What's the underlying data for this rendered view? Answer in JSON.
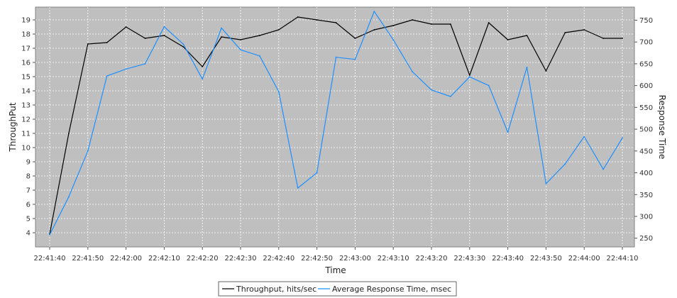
{
  "chart_data": {
    "type": "line",
    "xlabel": "Time",
    "ylabel_left": "ThroughPut",
    "ylabel_right": "Response Time",
    "x_ticks": [
      "22:41:40",
      "22:41:50",
      "22:42:00",
      "22:42:10",
      "22:42:20",
      "22:42:30",
      "22:42:40",
      "22:42:50",
      "22:43:00",
      "22:43:10",
      "22:43:20",
      "22:43:30",
      "22:43:40",
      "22:43:50",
      "22:44:00",
      "22:44:10"
    ],
    "y_left_ticks": [
      4,
      5,
      6,
      7,
      8,
      9,
      10,
      11,
      12,
      13,
      14,
      15,
      16,
      17,
      18,
      19
    ],
    "y_right_ticks": [
      250,
      300,
      350,
      400,
      450,
      500,
      550,
      600,
      650,
      700,
      750
    ],
    "ylim_left": [
      3.0,
      19.9
    ],
    "ylim_right": [
      230,
      780
    ],
    "grid": true,
    "legend_position": "bottom",
    "background": "#bfbfbf",
    "series": [
      {
        "name": "Throughput, hits/sec",
        "axis": "left",
        "color": "#000000",
        "x": [
          "22:41:40",
          "22:41:45",
          "22:41:50",
          "22:41:55",
          "22:42:00",
          "22:42:05",
          "22:42:10",
          "22:42:15",
          "22:42:20",
          "22:42:25",
          "22:42:30",
          "22:42:35",
          "22:42:40",
          "22:42:45",
          "22:42:50",
          "22:42:55",
          "22:43:00",
          "22:43:05",
          "22:43:10",
          "22:43:15",
          "22:43:20",
          "22:43:25",
          "22:43:30",
          "22:43:35",
          "22:43:40",
          "22:43:45",
          "22:43:50",
          "22:43:55",
          "22:44:00",
          "22:44:05",
          "22:44:10"
        ],
        "values": [
          3.9,
          11.0,
          17.3,
          17.4,
          18.5,
          17.7,
          17.9,
          17.1,
          15.7,
          17.8,
          17.6,
          17.9,
          18.3,
          19.2,
          19.0,
          18.8,
          17.7,
          18.3,
          18.6,
          19.0,
          18.7,
          18.7,
          15.1,
          18.8,
          17.6,
          17.9,
          15.4,
          18.1,
          18.3,
          17.7,
          17.7
        ]
      },
      {
        "name": "Average Response Time, msec",
        "axis": "right",
        "color": "#1e90ff",
        "x": [
          "22:41:40",
          "22:41:45",
          "22:41:50",
          "22:41:55",
          "22:42:00",
          "22:42:05",
          "22:42:10",
          "22:42:15",
          "22:42:20",
          "22:42:25",
          "22:42:30",
          "22:42:35",
          "22:42:40",
          "22:42:45",
          "22:42:50",
          "22:42:55",
          "22:43:00",
          "22:43:05",
          "22:43:10",
          "22:43:15",
          "22:43:20",
          "22:43:25",
          "22:43:30",
          "22:43:35",
          "22:43:40",
          "22:43:45",
          "22:43:50",
          "22:43:55",
          "22:44:00",
          "22:44:05",
          "22:44:10"
        ],
        "values": [
          258,
          345,
          450,
          622,
          638,
          650,
          735,
          695,
          615,
          732,
          682,
          668,
          586,
          365,
          400,
          665,
          660,
          770,
          705,
          632,
          590,
          575,
          620,
          600,
          493,
          642,
          375,
          420,
          483,
          408,
          480
        ]
      }
    ]
  }
}
